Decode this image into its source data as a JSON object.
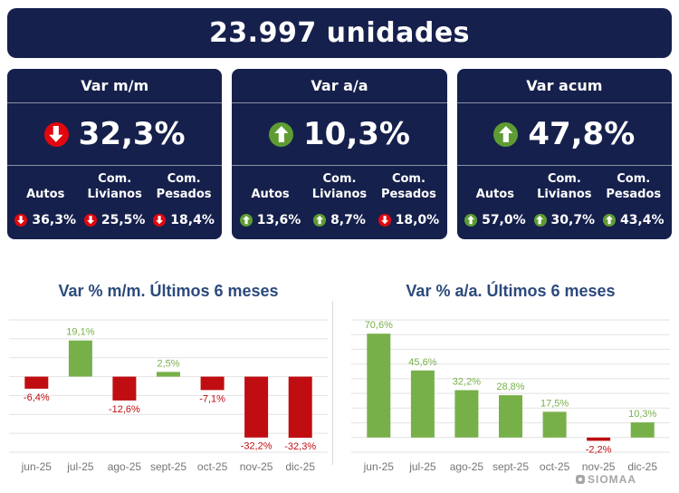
{
  "header": {
    "title": "23.997 unidades"
  },
  "colors": {
    "navy": "#16204C",
    "red": "#E2070F",
    "green": "#5E9C33",
    "bar_green": "#77B049",
    "bar_red": "#C00D11",
    "title_blue": "#2C4A7C",
    "axis_gray": "#757575",
    "grid_gray": "#E2E2E2",
    "divider_gray": "#D9D9D9",
    "logo_gray": "#A6A6A6",
    "card_divider": "rgba(255,255,255,0.5)"
  },
  "cards": [
    {
      "title": "Var m/m",
      "value": "32,3%",
      "direction": "down",
      "metrics": [
        {
          "label": "Autos",
          "value": "36,3%",
          "direction": "down"
        },
        {
          "label": "Com. Livianos",
          "value": "25,5%",
          "direction": "down"
        },
        {
          "label": "Com. Pesados",
          "value": "18,4%",
          "direction": "down"
        }
      ]
    },
    {
      "title": "Var a/a",
      "value": "10,3%",
      "direction": "up",
      "metrics": [
        {
          "label": "Autos",
          "value": "13,6%",
          "direction": "up"
        },
        {
          "label": "Com. Livianos",
          "value": "8,7%",
          "direction": "up"
        },
        {
          "label": "Com. Pesados",
          "value": "18,0%",
          "direction": "down"
        }
      ]
    },
    {
      "title": "Var acum",
      "value": "47,8%",
      "direction": "up",
      "metrics": [
        {
          "label": "Autos",
          "value": "57,0%",
          "direction": "up"
        },
        {
          "label": "Com. Livianos",
          "value": "30,7%",
          "direction": "up"
        },
        {
          "label": "Com. Pesados",
          "value": "43,4%",
          "direction": "up"
        }
      ]
    }
  ],
  "chart_data": [
    {
      "type": "bar",
      "title": "Var % m/m. Últimos 6 meses",
      "categories": [
        "jun-25",
        "jul-25",
        "ago-25",
        "sept-25",
        "oct-25",
        "nov-25",
        "dic-25"
      ],
      "values": [
        -6.4,
        19.1,
        -12.6,
        2.5,
        -7.1,
        -32.2,
        -32.3
      ],
      "labels": [
        "-6,4%",
        "19,1%",
        "-12,6%",
        "2,5%",
        "-7,1%",
        "-32,2%",
        "-32,3%"
      ],
      "ylim": [
        -40,
        30
      ],
      "grid_step": 10,
      "grid": true,
      "legend": "none",
      "positive_color": "#77B049",
      "negative_color": "#C00D11"
    },
    {
      "type": "bar",
      "title": "Var % a/a. Últimos 6 meses",
      "categories": [
        "jun-25",
        "jul-25",
        "ago-25",
        "sept-25",
        "oct-25",
        "nov-25",
        "dic-25"
      ],
      "values": [
        70.6,
        45.6,
        32.2,
        28.8,
        17.5,
        -2.2,
        10.3
      ],
      "labels": [
        "70,6%",
        "45,6%",
        "32,2%",
        "28,8%",
        "17,5%",
        "-2,2%",
        "10,3%"
      ],
      "ylim": [
        -10,
        80
      ],
      "grid_step": 10,
      "grid": true,
      "legend": "none",
      "positive_color": "#77B049",
      "negative_color": "#C00D11"
    }
  ],
  "footer": {
    "logo_text": "SIOMAA"
  }
}
